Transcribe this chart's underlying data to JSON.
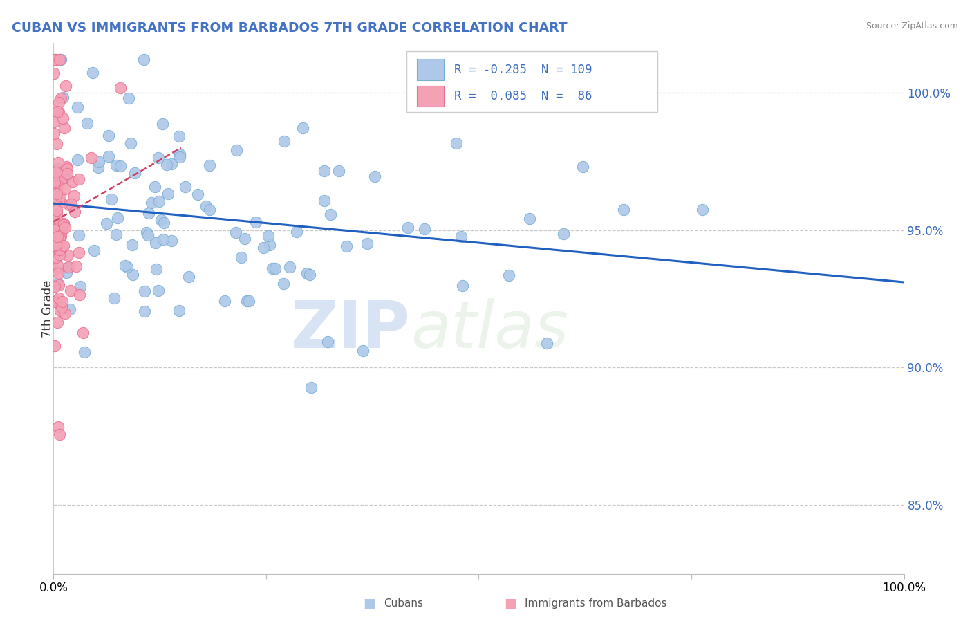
{
  "title": "CUBAN VS IMMIGRANTS FROM BARBADOS 7TH GRADE CORRELATION CHART",
  "source": "Source: ZipAtlas.com",
  "ylabel": "7th Grade",
  "xlim": [
    0.0,
    100.0
  ],
  "ylim": [
    82.5,
    101.8
  ],
  "yticks_right": [
    85.0,
    90.0,
    95.0,
    100.0
  ],
  "blue_R": -0.285,
  "blue_N": 109,
  "pink_R": 0.085,
  "pink_N": 86,
  "blue_color": "#adc8e8",
  "blue_edge": "#7aafd4",
  "pink_color": "#f4a0b5",
  "pink_edge": "#e87090",
  "blue_line_color": "#2060c0",
  "pink_line_color": "#d04060",
  "watermark_zip": "ZIP",
  "watermark_atlas": "atlas",
  "legend_blue_label": "Cubans",
  "legend_pink_label": "Immigrants from Barbados"
}
